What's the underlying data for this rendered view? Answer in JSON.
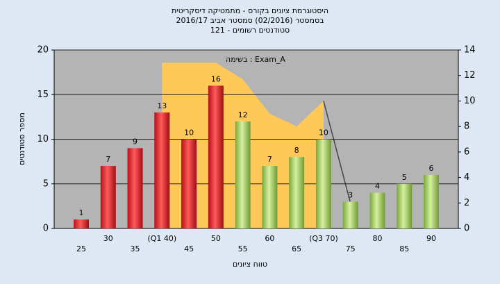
{
  "chart_data": {
    "type": "bar",
    "title": "היסטוגרמת ציונים בקורס - מתמטיקה דיסקריטית",
    "subtitle": "בסמסטר (02/2016) סמסטר אביב 2016/17",
    "subtitle2": "סטודנטים רשומים - 121",
    "annotation": "בשימה : Exam_A",
    "xlabel": "טווח ציונים",
    "ylabel": "מספר סטודנטים",
    "categories": [
      "25",
      "30",
      "35",
      "(Q1 40)",
      "45",
      "50",
      "55",
      "60",
      "65",
      "(Q3 70)",
      "75",
      "80",
      "85",
      "90"
    ],
    "values": [
      1,
      7,
      9,
      13,
      10,
      16,
      12,
      7,
      8,
      10,
      3,
      4,
      5,
      6
    ],
    "colors": [
      "red",
      "red",
      "red",
      "red",
      "red",
      "red",
      "green",
      "green",
      "green",
      "green",
      "green",
      "green",
      "green",
      "green"
    ],
    "series": [
      {
        "type": "area",
        "axis": "y2",
        "color": "#ffc95a",
        "values": [
          null,
          null,
          null,
          13,
          13,
          13,
          11.7,
          9,
          8,
          10,
          null,
          null,
          null,
          null
        ]
      },
      {
        "type": "line",
        "axis": "y2",
        "color": "#444444",
        "values": [
          null,
          null,
          null,
          null,
          null,
          null,
          null,
          null,
          null,
          10,
          2,
          null,
          null,
          null
        ]
      }
    ],
    "ylim": [
      0,
      20
    ],
    "yticks": [
      0,
      5,
      10,
      15,
      20
    ],
    "y2lim": [
      0,
      14
    ],
    "y2ticks": [
      0,
      2,
      4,
      6,
      8,
      10,
      12,
      14
    ],
    "grid": true
  }
}
